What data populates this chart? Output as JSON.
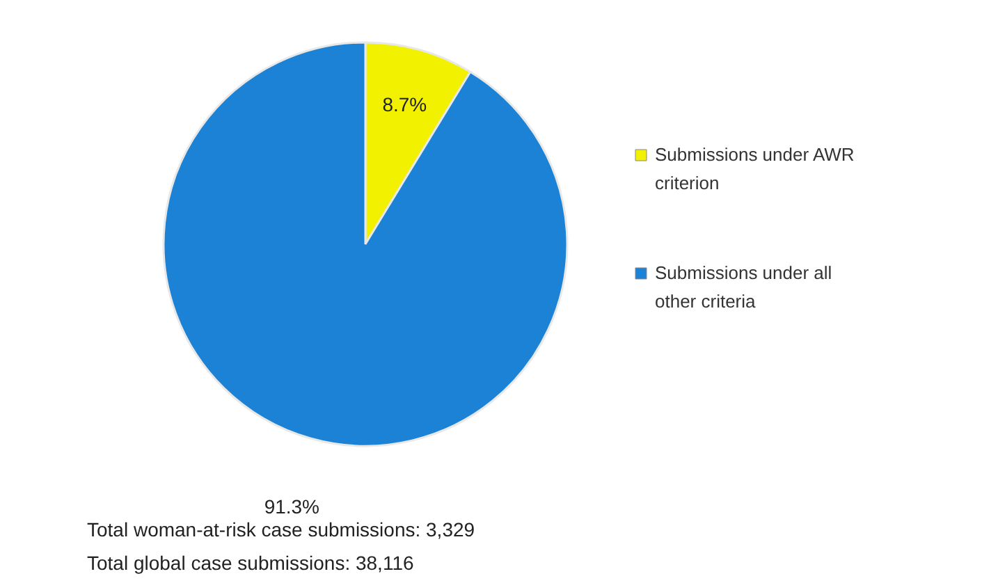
{
  "chart_data": {
    "type": "pie",
    "categories": [
      "Submissions under AWR criterion",
      "Submissions under all other criteria"
    ],
    "values": [
      8.7,
      91.3
    ],
    "colors": [
      "#f2f200",
      "#1b82d6"
    ],
    "value_labels": [
      "8.7%",
      "91.3%"
    ],
    "legend": "right",
    "annotations": [
      "Total woman-at-risk case submissions:  3,329",
      "Total global case submissions:  38,116"
    ]
  }
}
